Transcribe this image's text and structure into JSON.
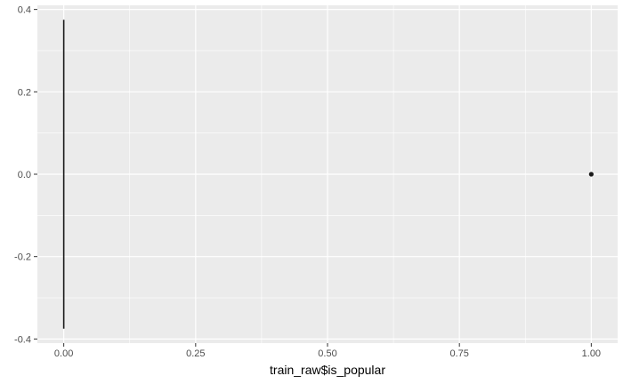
{
  "chart_data": {
    "type": "boxplot",
    "title": "",
    "xlabel": "train_raw$is_popular",
    "ylabel": "",
    "xlim": [
      -0.05,
      1.05
    ],
    "ylim": [
      -0.41,
      0.41
    ],
    "x_ticks": [
      0.0,
      0.25,
      0.5,
      0.75,
      1.0
    ],
    "x_tick_labels": [
      "0.00",
      "0.25",
      "0.50",
      "0.75",
      "1.00"
    ],
    "y_ticks": [
      -0.4,
      -0.2,
      0.0,
      0.2,
      0.4
    ],
    "y_tick_labels": [
      "-0.4",
      "-0.2",
      "0.0",
      "0.2",
      "0.4"
    ],
    "grid": true,
    "background": "#ebebeb",
    "grid_color": "#ffffff",
    "mark_color": "#1a1a1a",
    "segments": [
      {
        "x": 0.0,
        "y_min": -0.375,
        "y_max": 0.375
      }
    ],
    "points": [
      {
        "x": 1.0,
        "y": 0.0
      }
    ]
  }
}
